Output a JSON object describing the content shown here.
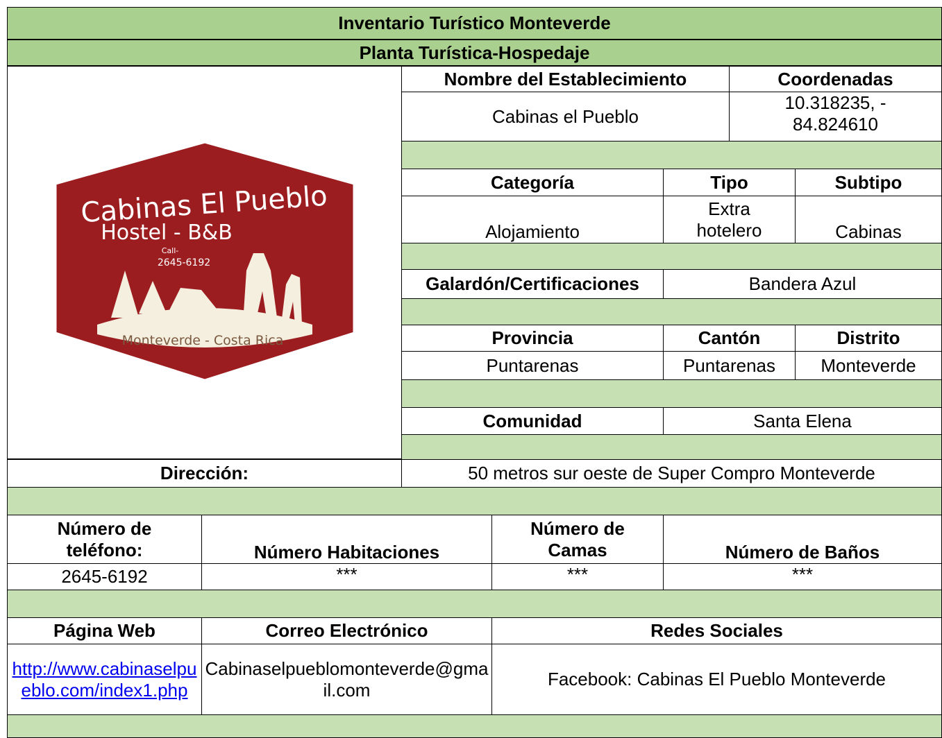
{
  "header": {
    "title": "Inventario Turístico Monteverde",
    "subtitle": "Planta Turística-Hospedaje"
  },
  "logo": {
    "name": "Cabinas El Pueblo",
    "line2": "Hostel - B&B",
    "call": "Call-",
    "phone": "2645-6192",
    "place": "Monteverde - Costa Rica"
  },
  "establishment": {
    "name_label": "Nombre del Establecimiento",
    "name": "Cabinas el Pueblo",
    "coords_label": "Coordenadas",
    "coords": "10.318235, - 84.824610"
  },
  "classification": {
    "category_label": "Categoría",
    "category": "Alojamiento",
    "type_label": "Tipo",
    "type": "Extra hotelero",
    "subtype_label": "Subtipo",
    "subtype": "Cabinas"
  },
  "award": {
    "label": "Galardón/Certificaciones",
    "value": "Bandera Azul"
  },
  "location": {
    "province_label": "Provincia",
    "province": "Puntarenas",
    "canton_label": "Cantón",
    "canton": "Puntarenas",
    "district_label": "Distrito",
    "district": "Monteverde",
    "community_label": "Comunidad",
    "community": "Santa Elena"
  },
  "address": {
    "label": "Dirección:",
    "value": "50 metros sur oeste de Super Compro Monteverde"
  },
  "capacity": {
    "phone_label": "Número de teléfono:",
    "phone": "2645-6192",
    "rooms_label": "Número Habitaciones",
    "rooms": "***",
    "beds_label": "Número de Camas",
    "beds": "***",
    "baths_label": "Número de Baños",
    "baths": "***"
  },
  "contact": {
    "web_label": "Página Web",
    "web": "http://www.cabinaselpueblo.com/index1.php",
    "email_label": "Correo Electrónico",
    "email": "Cabinaselpueblomonteverde@gmail.com",
    "social_label": "Redes Sociales",
    "social": "Facebook: Cabinas El Pueblo Monteverde"
  }
}
